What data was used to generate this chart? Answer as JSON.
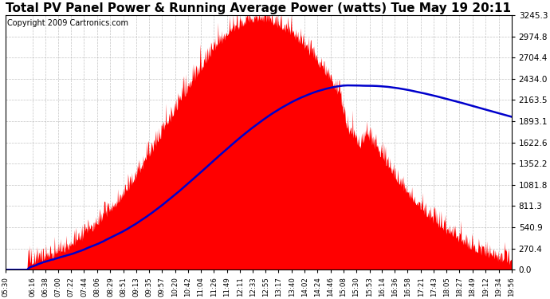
{
  "title": "Total PV Panel Power & Running Average Power (watts) Tue May 19 20:11",
  "copyright": "Copyright 2009 Cartronics.com",
  "ymax": 3245.3,
  "yticks": [
    0.0,
    270.4,
    540.9,
    811.3,
    1081.8,
    1352.2,
    1622.6,
    1893.1,
    2163.5,
    2434.0,
    2704.4,
    2974.8,
    3245.3
  ],
  "xtick_labels": [
    "05:30",
    "06:16",
    "06:38",
    "07:00",
    "07:22",
    "07:44",
    "08:06",
    "08:29",
    "08:51",
    "09:13",
    "09:35",
    "09:57",
    "10:20",
    "10:42",
    "11:04",
    "11:26",
    "11:49",
    "12:11",
    "12:33",
    "12:55",
    "13:17",
    "13:40",
    "14:02",
    "14:24",
    "14:46",
    "15:08",
    "15:30",
    "15:53",
    "16:14",
    "16:36",
    "16:58",
    "17:21",
    "17:43",
    "18:05",
    "18:27",
    "18:49",
    "19:12",
    "19:34",
    "19:56"
  ],
  "fill_color": "#FF0000",
  "line_color": "#0000CC",
  "bg_color": "#FFFFFF",
  "grid_color": "#AAAAAA",
  "title_fontsize": 11,
  "copyright_fontsize": 7
}
